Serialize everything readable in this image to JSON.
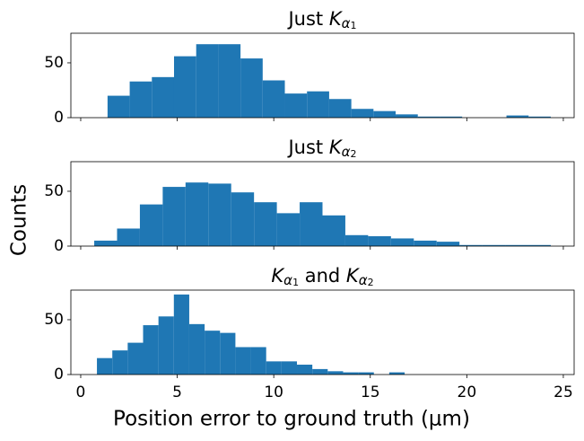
{
  "chart_data": [
    {
      "type": "histogram",
      "title": [
        {
          "text": "Just "
        },
        {
          "text": "K",
          "math": true
        },
        {
          "text": "α",
          "sub": 1
        },
        {
          "text": "1",
          "sub": 2
        }
      ],
      "bins": [
        1.39,
        2.538,
        3.686,
        4.834,
        5.982,
        7.13,
        8.278,
        9.426,
        10.574,
        11.722,
        12.87,
        14.018,
        15.166,
        16.314,
        17.462,
        18.61,
        19.758,
        20.906,
        22.054,
        23.202,
        24.35
      ],
      "values": [
        20,
        33,
        37,
        56,
        67,
        67,
        54,
        34,
        22,
        24,
        17,
        8,
        6,
        3,
        1,
        1,
        0,
        0,
        2,
        1
      ],
      "color": "#1f77b4",
      "xlim": [
        -0.51,
        25.56
      ],
      "xticks": [
        0,
        5,
        10,
        15,
        20,
        25
      ],
      "xtick_labels": false,
      "ylim": [
        0,
        77
      ],
      "yticks": [
        0,
        50
      ]
    },
    {
      "type": "histogram",
      "title": [
        {
          "text": "Just "
        },
        {
          "text": "K",
          "math": true
        },
        {
          "text": "α",
          "sub": 1
        },
        {
          "text": "2",
          "sub": 2
        }
      ],
      "ylabel": "Counts",
      "bins": [
        0.7,
        1.8825,
        3.065,
        4.2475,
        5.43,
        6.6125,
        7.795,
        8.9775,
        10.16,
        11.3425,
        12.525,
        13.7075,
        14.89,
        16.0725,
        17.255,
        18.4375,
        19.62,
        20.8025,
        21.985,
        23.1675,
        24.35
      ],
      "values": [
        5,
        16,
        38,
        54,
        58,
        57,
        49,
        40,
        30,
        40,
        28,
        10,
        9,
        7,
        5,
        4,
        1,
        1,
        1,
        1
      ],
      "color": "#1f77b4",
      "xlim": [
        -0.51,
        25.56
      ],
      "xticks": [
        0,
        5,
        10,
        15,
        20,
        25
      ],
      "xtick_labels": false,
      "ylim": [
        0,
        77
      ],
      "yticks": [
        0,
        50
      ]
    },
    {
      "type": "histogram",
      "title": [
        {
          "text": "K",
          "math": true
        },
        {
          "text": "α",
          "sub": 1
        },
        {
          "text": "1",
          "sub": 2
        },
        {
          "text": " and "
        },
        {
          "text": "K",
          "math": true
        },
        {
          "text": "α",
          "sub": 1
        },
        {
          "text": "2",
          "sub": 2
        }
      ],
      "xlabel": "Position error to ground truth (μm)",
      "bins": [
        0.84,
        1.637,
        2.434,
        3.231,
        4.028,
        4.825,
        5.622,
        6.419,
        7.216,
        8.013,
        8.81,
        9.607,
        10.404,
        11.201,
        11.998,
        12.795,
        13.592,
        14.389,
        15.186,
        15.983,
        16.78
      ],
      "values": [
        15,
        22,
        29,
        45,
        53,
        73,
        46,
        40,
        38,
        25,
        25,
        12,
        12,
        9,
        5,
        3,
        2,
        2,
        0,
        2
      ],
      "color": "#1f77b4",
      "xlim": [
        -0.51,
        25.56
      ],
      "xticks": [
        0,
        5,
        10,
        15,
        20,
        25
      ],
      "xtick_labels": true,
      "ylim": [
        0,
        77
      ],
      "yticks": [
        0,
        50
      ]
    }
  ]
}
